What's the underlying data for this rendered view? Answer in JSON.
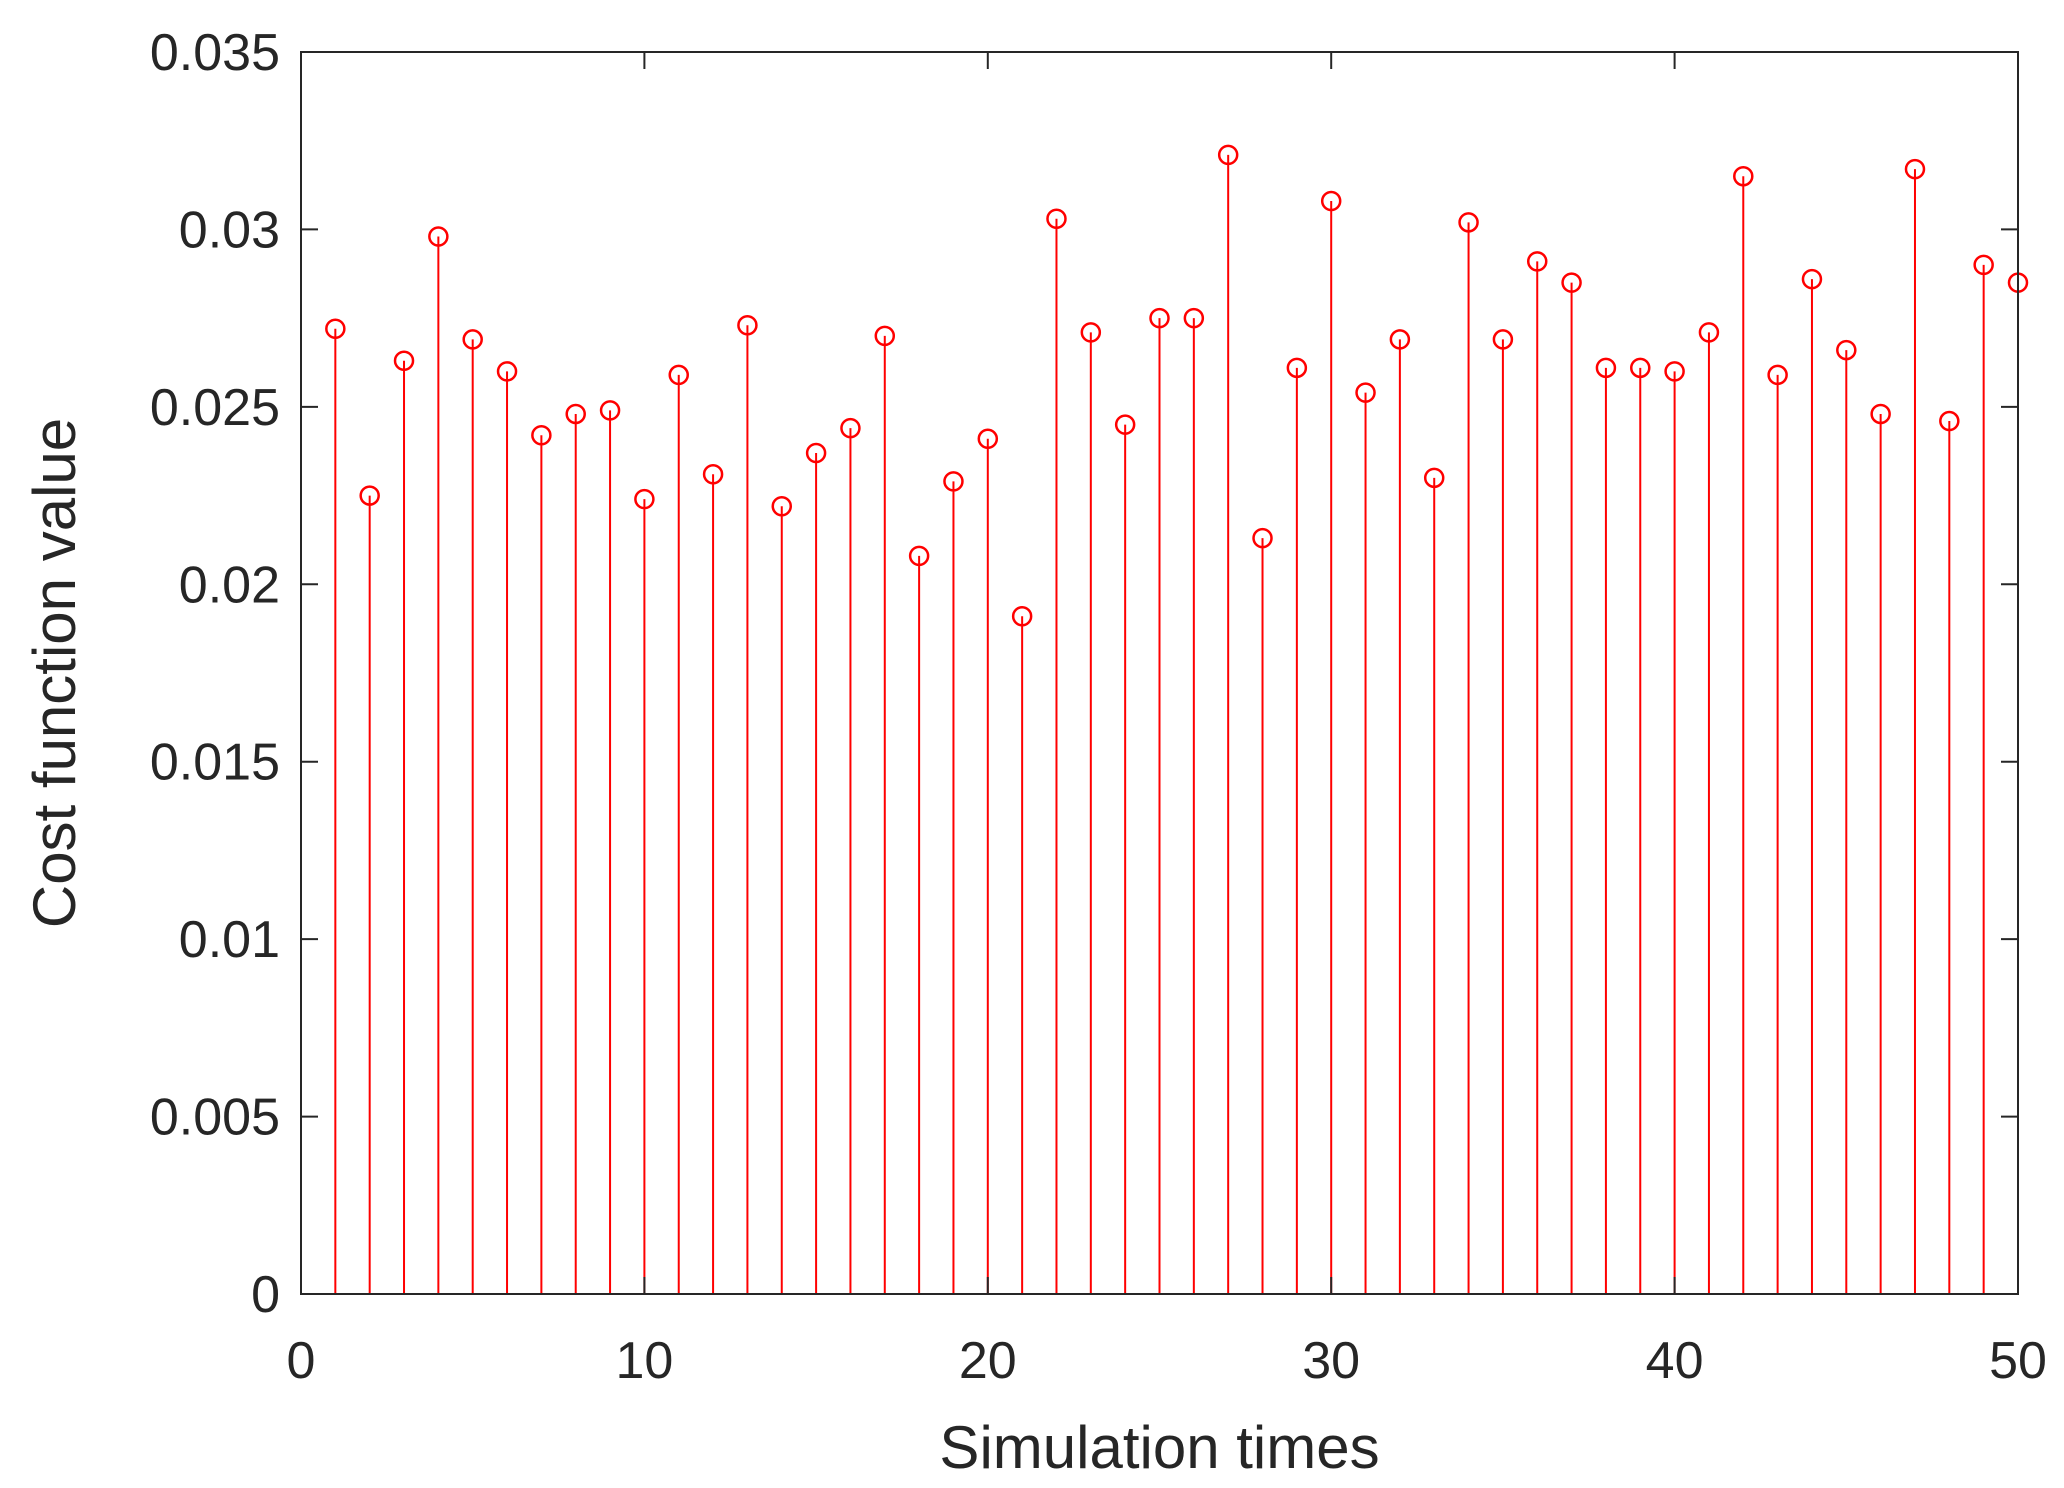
{
  "chart_data": {
    "type": "stem",
    "title": "",
    "xlabel": "Simulation times",
    "ylabel": "Cost function value",
    "xlim": [
      0,
      50
    ],
    "ylim": [
      0,
      0.035
    ],
    "xticks": [
      0,
      10,
      20,
      30,
      40,
      50
    ],
    "xtick_labels": [
      "0",
      "10",
      "20",
      "30",
      "40",
      "50"
    ],
    "yticks": [
      0,
      0.005,
      0.01,
      0.015,
      0.02,
      0.025,
      0.03,
      0.035
    ],
    "ytick_labels": [
      "0",
      "0.005",
      "0.01",
      "0.015",
      "0.02",
      "0.025",
      "0.03",
      "0.035"
    ],
    "grid": false,
    "series": [
      {
        "name": "Cost function value",
        "color": "#ff0000",
        "marker": "circle",
        "x": [
          1,
          2,
          3,
          4,
          5,
          6,
          7,
          8,
          9,
          10,
          11,
          12,
          13,
          14,
          15,
          16,
          17,
          18,
          19,
          20,
          21,
          22,
          23,
          24,
          25,
          26,
          27,
          28,
          29,
          30,
          31,
          32,
          33,
          34,
          35,
          36,
          37,
          38,
          39,
          40,
          41,
          42,
          43,
          44,
          45,
          46,
          47,
          48,
          49,
          50
        ],
        "values": [
          0.0272,
          0.0225,
          0.0263,
          0.0298,
          0.0269,
          0.026,
          0.0242,
          0.0248,
          0.0249,
          0.0224,
          0.0259,
          0.0231,
          0.0273,
          0.0222,
          0.0237,
          0.0244,
          0.027,
          0.0208,
          0.0229,
          0.0241,
          0.0191,
          0.0303,
          0.0271,
          0.0245,
          0.0275,
          0.0275,
          0.0321,
          0.0213,
          0.0261,
          0.0308,
          0.0254,
          0.0269,
          0.023,
          0.0302,
          0.0269,
          0.0291,
          0.0285,
          0.0261,
          0.0261,
          0.026,
          0.0271,
          0.0315,
          0.0259,
          0.0286,
          0.0266,
          0.0248,
          0.0317,
          0.0246,
          0.029,
          0.0285
        ]
      }
    ]
  }
}
